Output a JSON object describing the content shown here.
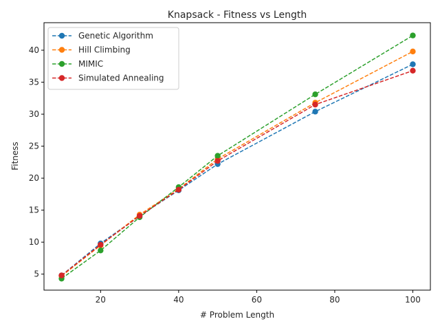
{
  "chart_data": {
    "type": "line",
    "title": "Knapsack - Fitness vs Length",
    "xlabel": "# Problem Length",
    "ylabel": "Fitness",
    "xlim": [
      5.5,
      104.5
    ],
    "ylim": [
      2.5,
      44.3
    ],
    "xticks": [
      20,
      40,
      60,
      80,
      100
    ],
    "yticks": [
      5,
      10,
      15,
      20,
      25,
      30,
      35,
      40
    ],
    "grid": false,
    "legend_position": "upper left",
    "x": [
      10,
      20,
      30,
      40,
      50,
      75,
      100
    ],
    "series": [
      {
        "name": "Genetic Algorithm",
        "color": "#1f77b4",
        "values": [
          4.8,
          9.8,
          14.1,
          18.1,
          22.2,
          30.4,
          37.8
        ]
      },
      {
        "name": "Hill Climbing",
        "color": "#ff7f0e",
        "values": [
          4.7,
          9.5,
          14.3,
          18.3,
          23.0,
          31.8,
          39.8
        ]
      },
      {
        "name": "MIMIC",
        "color": "#2ca02c",
        "values": [
          4.3,
          8.7,
          13.9,
          18.6,
          23.5,
          33.1,
          42.3
        ]
      },
      {
        "name": "Simulated Annealing",
        "color": "#d62728",
        "values": [
          4.8,
          9.6,
          14.1,
          18.2,
          22.7,
          31.5,
          36.8
        ]
      }
    ]
  }
}
